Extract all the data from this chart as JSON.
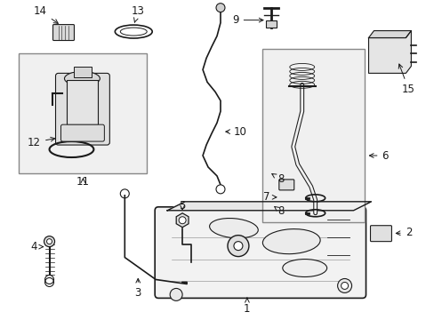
{
  "bg": "#ffffff",
  "lc": "#1a1a1a",
  "gray_box": "#e8e8e8",
  "fig_w": 4.89,
  "fig_h": 3.6,
  "dpi": 100
}
